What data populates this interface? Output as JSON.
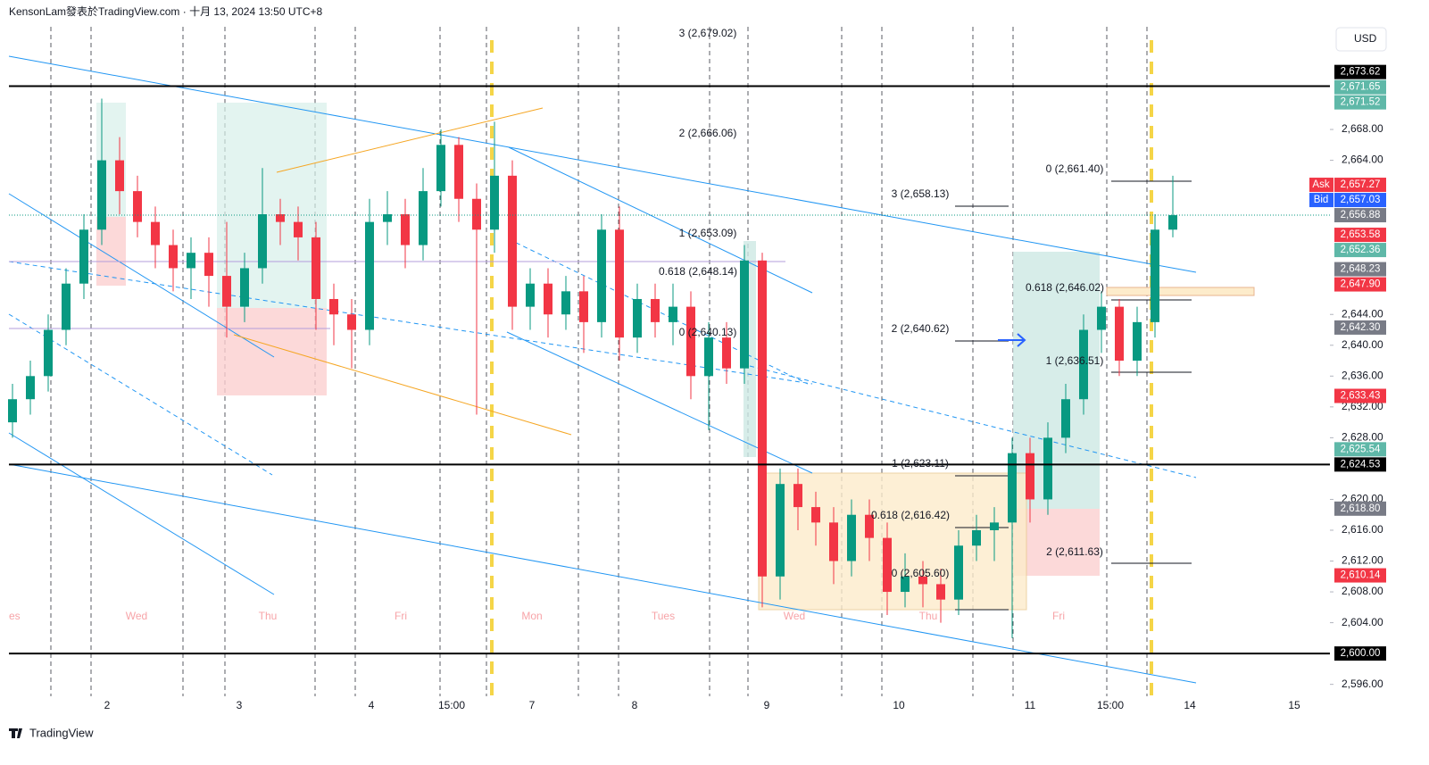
{
  "header": {
    "text": "KensonLam發表於TradingView.com · 十月 13, 2024 13:50 UTC+8",
    "currency": "USD",
    "brand": "TradingView"
  },
  "chart_data": {
    "type": "candlestick",
    "open": [
      2630,
      2633,
      2636,
      2642,
      2648,
      2655,
      2664,
      2660,
      2656,
      2653,
      2650,
      2652,
      2649,
      2645,
      2650,
      2657,
      2656,
      2654,
      2646,
      2644,
      2642,
      2656,
      2657,
      2653,
      2660,
      2666,
      2659,
      2655,
      2662,
      2645,
      2648,
      2644,
      2647,
      2643,
      2655,
      2641,
      2646,
      2643,
      2645,
      2636,
      2641,
      2637,
      2651,
      2610,
      2622,
      2619,
      2617,
      2612,
      2618,
      2615,
      2608,
      2610,
      2609,
      2607,
      2614,
      2616,
      2617,
      2626,
      2620,
      2628,
      2633,
      2642,
      2645,
      2638,
      2643,
      2655
    ],
    "high": [
      2635,
      2638,
      2644,
      2650,
      2657,
      2672,
      2667,
      2662,
      2658,
      2655,
      2654,
      2654,
      2656,
      2652,
      2663,
      2659,
      2658,
      2656,
      2648,
      2646,
      2659,
      2660,
      2659,
      2663,
      2668,
      2667,
      2661,
      2669,
      2664,
      2650,
      2650,
      2649,
      2649,
      2657,
      2658,
      2648,
      2648,
      2648,
      2647,
      2643,
      2643,
      2653,
      2652,
      2624,
      2624,
      2621,
      2619,
      2620,
      2620,
      2617,
      2613,
      2612,
      2611,
      2616,
      2618,
      2619,
      2628,
      2628,
      2630,
      2635,
      2644,
      2647,
      2646,
      2645,
      2657,
      2662
    ],
    "low": [
      2628,
      2631,
      2634,
      2640,
      2646,
      2653,
      2657,
      2654,
      2650,
      2647,
      2646,
      2645,
      2641,
      2643,
      2648,
      2653,
      2651,
      2642,
      2640,
      2637,
      2640,
      2653,
      2650,
      2651,
      2658,
      2656,
      2631,
      2652,
      2642,
      2642,
      2641,
      2642,
      2639,
      2641,
      2638,
      2639,
      2641,
      2640,
      2633,
      2629,
      2635,
      2635,
      2606,
      2607,
      2616,
      2614,
      2609,
      2610,
      2612,
      2605,
      2606,
      2606,
      2604,
      2605,
      2612,
      2612,
      2602,
      2617,
      2618,
      2626,
      2631,
      2639,
      2636,
      2636,
      2641,
      2654
    ],
    "close": [
      2633,
      2636,
      2642,
      2648,
      2655,
      2664,
      2660,
      2656,
      2653,
      2650,
      2652,
      2649,
      2645,
      2650,
      2657,
      2656,
      2654,
      2646,
      2644,
      2642,
      2656,
      2657,
      2653,
      2660,
      2666,
      2659,
      2655,
      2662,
      2645,
      2648,
      2644,
      2647,
      2643,
      2655,
      2641,
      2646,
      2643,
      2645,
      2636,
      2641,
      2637,
      2651,
      2610,
      2622,
      2619,
      2617,
      2612,
      2618,
      2615,
      2608,
      2610,
      2609,
      2607,
      2614,
      2616,
      2617,
      2626,
      2620,
      2628,
      2633,
      2642,
      2645,
      2638,
      2643,
      2655,
      2656.88
    ],
    "up_color": "#089981",
    "down_color": "#f23645",
    "ylim": [
      2594.5,
      2684.8
    ],
    "yticks": [
      {
        "value": 2596,
        "label": "2,596.00"
      },
      {
        "value": 2604,
        "label": "2,604.00"
      },
      {
        "value": 2608,
        "label": "2,608.00"
      },
      {
        "value": 2612,
        "label": "2,612.00"
      },
      {
        "value": 2616,
        "label": "2,616.00"
      },
      {
        "value": 2620,
        "label": "2,620.00"
      },
      {
        "value": 2628,
        "label": "2,628.00"
      },
      {
        "value": 2632,
        "label": "2,632.00"
      },
      {
        "value": 2636,
        "label": "2,636.00"
      },
      {
        "value": 2640,
        "label": "2,640.00"
      },
      {
        "value": 2644,
        "label": "2,644.00"
      },
      {
        "value": 2664,
        "label": "2,664.00"
      },
      {
        "value": 2668,
        "label": "2,668.00"
      }
    ],
    "x_labels": [
      "2",
      "3",
      "4",
      "15:00",
      "7",
      "8",
      "9",
      "10",
      "11",
      "15:00",
      "14",
      "15"
    ],
    "sessions": [
      "es",
      "Wed",
      "Thu",
      "Fri",
      "Mon",
      "Tues",
      "Wed",
      "Thu",
      "Fri"
    ],
    "price_labels": [
      {
        "value": 2673.62,
        "label": "2,673.62",
        "color": "#000000",
        "line": "solid"
      },
      {
        "value": 2671.65,
        "label": "2,671.65",
        "color": "#5fb8a8"
      },
      {
        "value": 2671.52,
        "label": "2,671.52",
        "color": "#5fb8a8"
      },
      {
        "value": 2657.27,
        "label": "2,657.27",
        "color": "#f23645",
        "tag": "Ask"
      },
      {
        "value": 2657.03,
        "label": "2,657.03",
        "color": "#2962ff",
        "tag": "Bid"
      },
      {
        "value": 2656.88,
        "label": "2,656.88",
        "color": "#787b86",
        "line": "dotted"
      },
      {
        "value": 2653.58,
        "label": "2,653.58",
        "color": "#f23645"
      },
      {
        "value": 2652.36,
        "label": "2,652.36",
        "color": "#5fb8a8"
      },
      {
        "value": 2648.23,
        "label": "2,648.23",
        "color": "#787b86"
      },
      {
        "value": 2647.9,
        "label": "2,647.90",
        "color": "#f23645"
      },
      {
        "value": 2642.3,
        "label": "2,642.30",
        "color": "#787b86"
      },
      {
        "value": 2633.43,
        "label": "2,633.43",
        "color": "#f23645"
      },
      {
        "value": 2625.54,
        "label": "2,625.54",
        "color": "#5fb8a8"
      },
      {
        "value": 2624.53,
        "label": "2,624.53",
        "color": "#000000",
        "line": "solid"
      },
      {
        "value": 2618.8,
        "label": "2,618.80",
        "color": "#787b86"
      },
      {
        "value": 2610.14,
        "label": "2,610.14",
        "color": "#f23645"
      },
      {
        "value": 2600.0,
        "label": "2,600.00",
        "color": "#000000",
        "line": "solid"
      }
    ],
    "annotations": [
      "3 (2,679.02)",
      "2 (2,666.06)",
      "1 (2,653.09)",
      "0.618 (2,648.14)",
      "0 (2,640.13)",
      "3 (2,658.13)",
      "2 (2,640.62)",
      "1 (2,623.11)",
      "0.618 (2,616.42)",
      "0 (2,605.60)",
      "0 (2,661.40)",
      "0.618 (2,646.02)",
      "1 (2,636.51)",
      "2 (2,611.63)"
    ]
  }
}
